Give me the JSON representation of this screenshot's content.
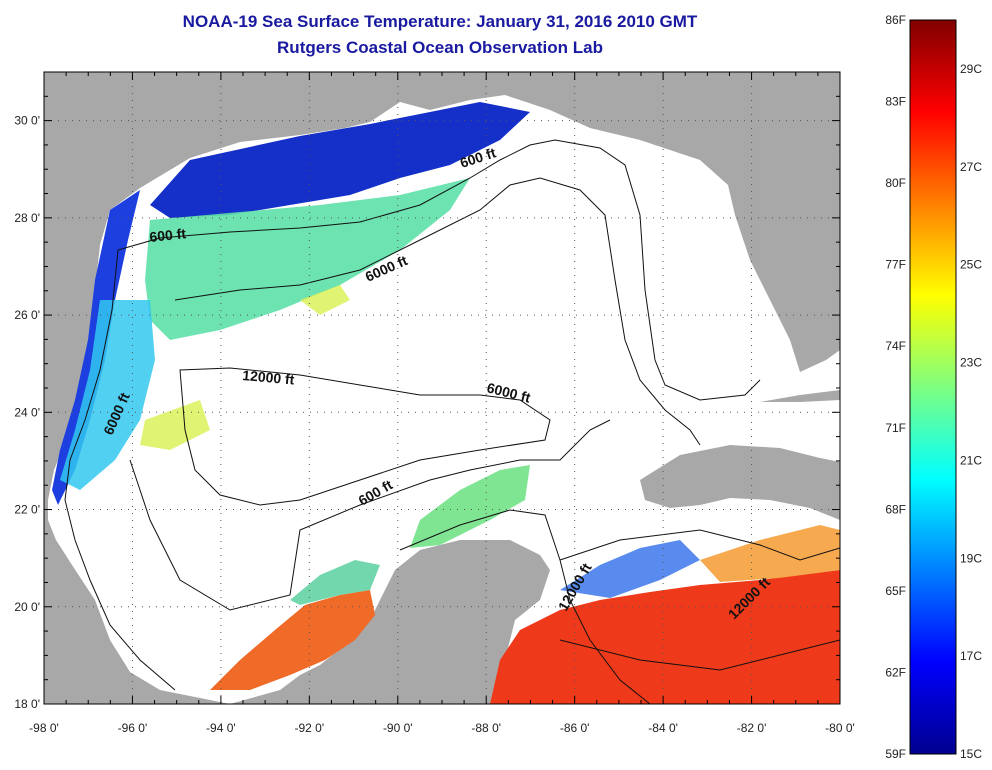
{
  "title": "NOAA-19 Sea Surface Temperature:  January 31, 2016 2010 GMT",
  "subtitle": "Rutgers Coastal Ocean Observation Lab",
  "map": {
    "region": "Gulf of Mexico",
    "lon_range": [
      -98,
      -80
    ],
    "lat_range": [
      18,
      31
    ],
    "grid": true,
    "lat_labels": [
      "18 0'",
      "20 0'",
      "22 0'",
      "24 0'",
      "26 0'",
      "28 0'",
      "30 0'"
    ],
    "lon_labels": [
      "-98 0'",
      "-96 0'",
      "-94 0'",
      "-92 0'",
      "-90 0'",
      "-88 0'",
      "-86 0'",
      "-84 0'",
      "-82 0'",
      "-80 0'"
    ],
    "contour_labels": [
      "600 ft",
      "600 ft",
      "6000 ft",
      "12000 ft",
      "6000 ft",
      "6000 ft",
      "600 ft",
      "12000 ft",
      "12000 ft"
    ],
    "colors": {
      "land": "#a8a8a8",
      "water_no_data": "#ffffff",
      "cold": "#1020c0",
      "warm": "#e83010"
    }
  },
  "colorbar": {
    "fahrenheit_labels": [
      "86F",
      "83F",
      "80F",
      "77F",
      "74F",
      "71F",
      "68F",
      "65F",
      "62F",
      "59F"
    ],
    "celsius_labels": [
      "29C",
      "27C",
      "25C",
      "23C",
      "21C",
      "19C",
      "17C",
      "15C"
    ]
  }
}
